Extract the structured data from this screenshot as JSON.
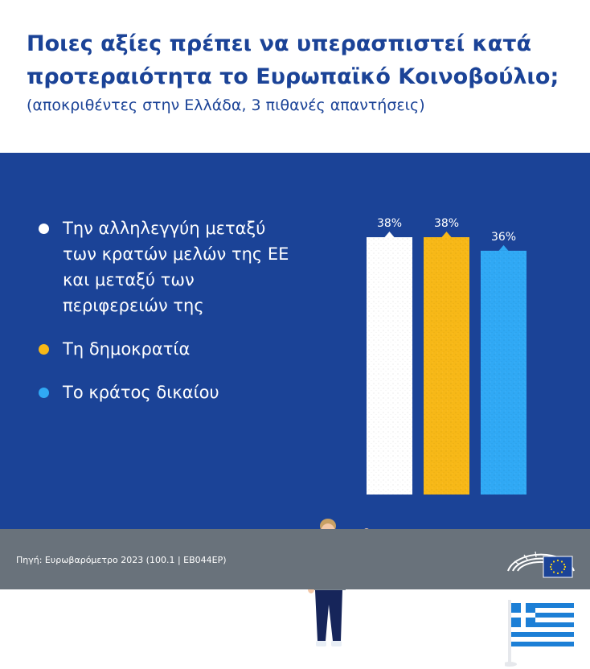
{
  "header": {
    "title": "Ποιες αξίες πρέπει να υπερασπιστεί κατά προτεραιότητα το Ευρωπαϊκό Κοινοβούλιο;",
    "subtitle": "(αποκριθέντες στην Ελλάδα, 3 πιθανές απαντήσεις)"
  },
  "footer": {
    "source": "Πηγή: Ευρωβαρόμετρο 2023 (100.1 | EB044EP)",
    "logo_icon": "european-parliament-logo"
  },
  "colors": {
    "panel": "#1b4397",
    "bar1": "#ffffff",
    "bar2": "#f7b817",
    "bar3": "#30a9f5",
    "footer": "#69727b"
  },
  "chart_data": {
    "type": "bar",
    "categories": [
      "Την αλληλεγγύη μεταξύ των κρατών μελών της ΕΕ και μεταξύ των περιφερειών της",
      "Τη δημοκρατία",
      "Το κράτος δικαίου"
    ],
    "legend_lines": [
      [
        "Την αλληλεγγύη μεταξύ",
        "των κρατών μελών της ΕΕ",
        "και μεταξύ των",
        "περιφερειών της"
      ],
      [
        "Τη δημοκρατία"
      ],
      [
        "Το κράτος δικαίου"
      ]
    ],
    "values": [
      38,
      38,
      36
    ],
    "value_labels": [
      "38%",
      "38%",
      "36%"
    ],
    "colors": [
      "#ffffff",
      "#f7b817",
      "#30a9f5"
    ],
    "legend_position": "left",
    "ylim": [
      0,
      38
    ],
    "grid": false
  }
}
